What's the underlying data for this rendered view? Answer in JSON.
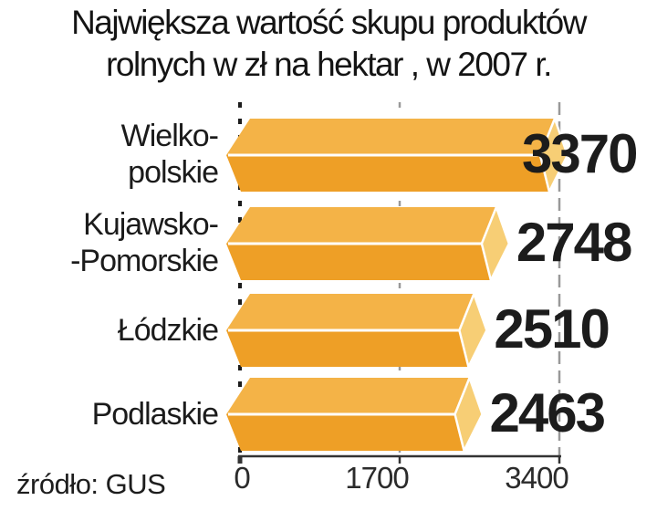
{
  "title": {
    "line1": "Największa wartość skupu produktów",
    "line2": "rolnych w zł na hektar , w 2007 r."
  },
  "source": "źródło: GUS",
  "colors": {
    "bar_top": "#F4B347",
    "bar_front": "#EE9F26",
    "bar_cap": "#F7CE75",
    "ridge": "#FFFFFF",
    "grid_zero": "#1C1C1C",
    "grid": "#999999",
    "axis": "#333333",
    "text": "#1C1C1C"
  },
  "chart_data": {
    "type": "bar",
    "orientation": "horizontal",
    "title": "Największa wartość skupu produktów rolnych w zł na hektar , w 2007 r.",
    "categories": [
      "Wielkopolskie",
      "Kujawsko-Pomorskie",
      "Łódzkie",
      "Podlaskie"
    ],
    "categories_display": [
      [
        "Wielko-",
        "polskie"
      ],
      [
        "Kujawsko-",
        "-Pomorskie"
      ],
      [
        "Łódzkie"
      ],
      [
        "Podlaskie"
      ]
    ],
    "values": [
      3370,
      2748,
      2510,
      2463
    ],
    "value_labels": [
      "3370",
      "2748",
      "2510",
      "2463"
    ],
    "x_ticks": [
      0,
      1700,
      3400
    ],
    "x_tick_labels": [
      "0",
      "1700",
      "3400"
    ],
    "xlim": [
      0,
      3400
    ],
    "grid": "dashed-vertical",
    "legend": "none",
    "source": "GUS"
  }
}
